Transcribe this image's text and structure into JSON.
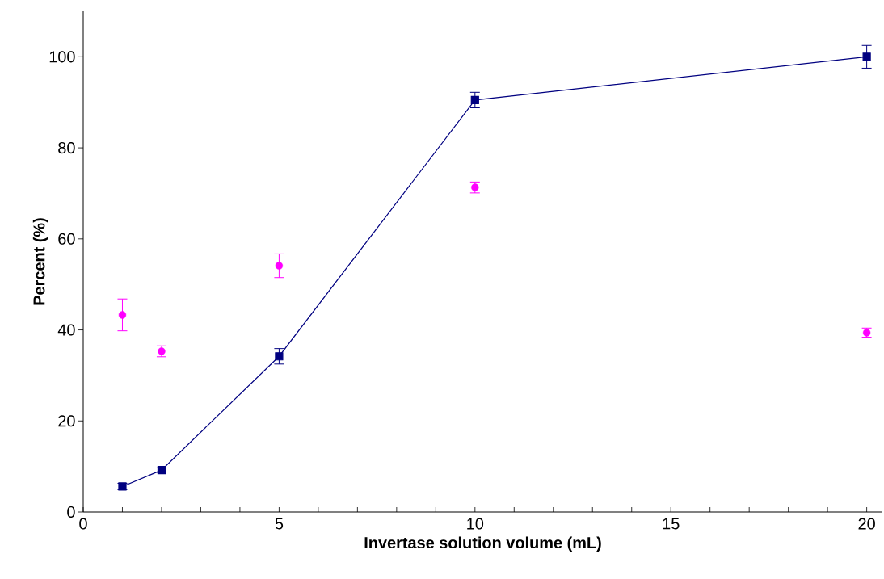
{
  "chart_data": {
    "type": "line",
    "xlabel": "Invertase solution volume (mL)",
    "ylabel": "Percent (%)",
    "xlim": [
      0,
      20.4
    ],
    "ylim": [
      0,
      110
    ],
    "xticks": [
      0,
      {
        "value": 1,
        "label": null
      },
      {
        "value": 2,
        "label": null
      },
      {
        "value": 3,
        "label": null
      },
      {
        "value": 4,
        "label": null
      },
      5,
      {
        "value": 6,
        "label": null
      },
      {
        "value": 7,
        "label": null
      },
      {
        "value": 8,
        "label": null
      },
      {
        "value": 9,
        "label": null
      },
      10,
      {
        "value": 11,
        "label": null
      },
      {
        "value": 12,
        "label": null
      },
      {
        "value": 13,
        "label": null
      },
      {
        "value": 14,
        "label": null
      },
      15,
      {
        "value": 16,
        "label": null
      },
      {
        "value": 17,
        "label": null
      },
      {
        "value": 18,
        "label": null
      },
      {
        "value": 19,
        "label": null
      },
      20
    ],
    "yticks": [
      0,
      20,
      40,
      60,
      80,
      100
    ],
    "grid": false,
    "series": [
      {
        "marker": "square",
        "color": "#000080",
        "x": [
          1,
          2,
          5,
          10,
          20
        ],
        "values": [
          5.6,
          9.2,
          34.2,
          90.5,
          100
        ],
        "errors": [
          0.7,
          0.5,
          1.7,
          1.7,
          2.5
        ]
      },
      {
        "type": "scatter",
        "marker": "circle",
        "color": "#ff00ff",
        "x": [
          1,
          2,
          5,
          10,
          20
        ],
        "values": [
          43.3,
          35.3,
          54.1,
          71.3,
          39.4
        ],
        "errors": [
          3.5,
          1.2,
          2.6,
          1.2,
          1.0
        ]
      }
    ]
  }
}
